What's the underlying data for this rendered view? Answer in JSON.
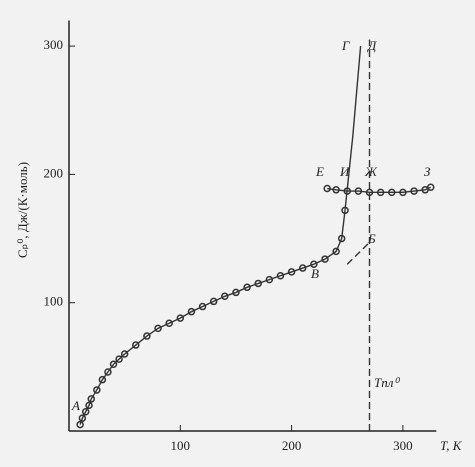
{
  "chart_data": {
    "type": "line",
    "ylabel": "Cₚ⁰, Дж/(К·моль)",
    "xlabel": "T, К",
    "xlim": [
      0,
      330
    ],
    "ylim": [
      0,
      320
    ],
    "xticks": [
      100,
      200,
      300
    ],
    "yticks": [
      100,
      200,
      300
    ],
    "series": [
      {
        "color": "#333333",
        "marker": true,
        "style": "solid",
        "x": [
          10,
          12,
          15,
          18,
          20,
          25,
          30,
          35,
          40,
          45,
          50,
          60,
          70,
          80,
          90,
          100,
          110,
          120,
          130,
          140,
          150,
          160,
          170,
          180,
          190,
          200,
          210,
          220,
          230,
          240,
          245,
          248
        ],
        "values": [
          5,
          10,
          15,
          20,
          25,
          32,
          40,
          46,
          52,
          56,
          60,
          67,
          74,
          80,
          84,
          88,
          93,
          97,
          101,
          105,
          108,
          112,
          115,
          118,
          121,
          124,
          127,
          130,
          134,
          140,
          150,
          172
        ]
      },
      {
        "color": "#333333",
        "marker": false,
        "style": "solid",
        "x": [
          248,
          255,
          262
        ],
        "values": [
          172,
          230,
          300
        ]
      },
      {
        "color": "#333333",
        "marker": true,
        "style": "solid",
        "x": [
          232,
          240,
          250,
          260,
          270,
          280,
          290,
          300,
          310,
          320,
          325
        ],
        "values": [
          189,
          188,
          187,
          187,
          186,
          186,
          186,
          186,
          187,
          188,
          190
        ]
      },
      {
        "color": "#333333",
        "marker": false,
        "style": "dashed",
        "x": [
          250,
          270
        ],
        "values": [
          130,
          147
        ]
      },
      {
        "color": "#333333",
        "marker": false,
        "style": "dashed",
        "x": [
          270,
          270
        ],
        "values": [
          0,
          305
        ]
      }
    ],
    "annotations": [
      "А",
      "В",
      "Б",
      "Г",
      "Д",
      "Е",
      "И",
      "Ж",
      "З",
      "Tпл⁰"
    ]
  }
}
